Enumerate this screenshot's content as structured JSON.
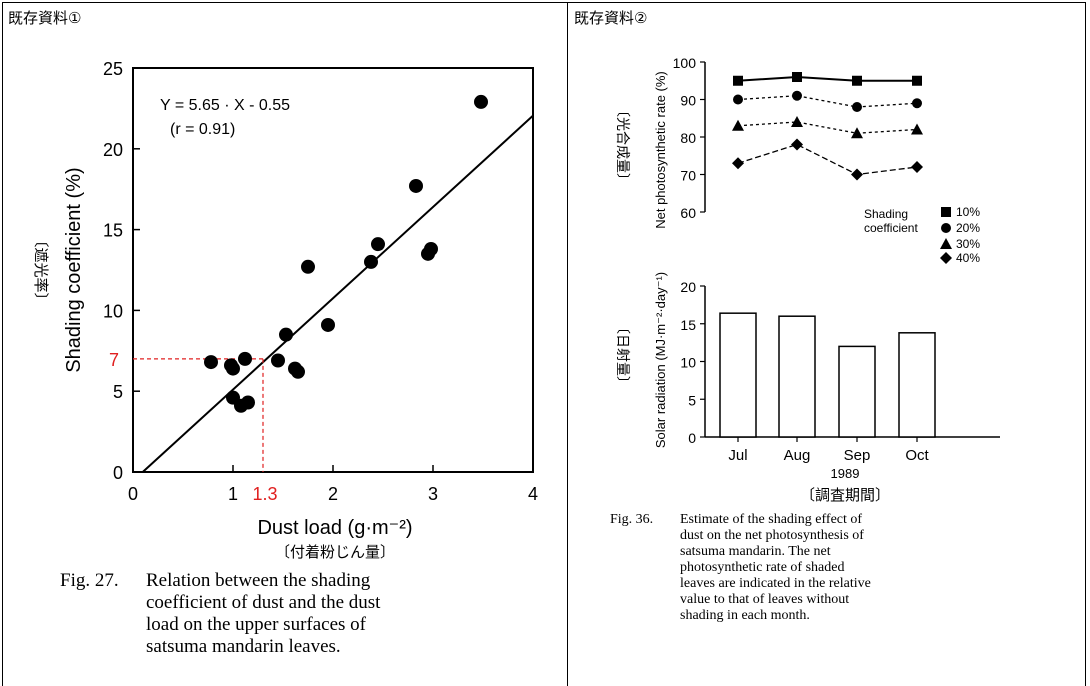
{
  "panels": {
    "left": {
      "title": "既存資料①",
      "caption_label": "Fig. 27.",
      "caption_text_1": "Relation between the shading",
      "caption_text_2": "coefficient of dust and the dust",
      "caption_text_3": "load on the upper surfaces of",
      "caption_text_4": "satsuma mandarin leaves."
    },
    "right": {
      "title": "既存資料②",
      "caption_label": "Fig. 36.",
      "caption_text_1": "Estimate of the shading effect of",
      "caption_text_2": "dust on the net photosynthesis of",
      "caption_text_3": "satsuma mandarin. The net",
      "caption_text_4": "photosynthetic rate of shaded",
      "caption_text_5": "leaves are indicated in the relative",
      "caption_text_6": "value to that of leaves without",
      "caption_text_7": "shading in each month."
    }
  },
  "chart_data": [
    {
      "type": "scatter",
      "xlabel": "Dust load (g·m⁻²)",
      "xlabel_jp": "〔付着粉じん量〕",
      "ylabel": "Shading coefficient (%)",
      "ylabel_jp": "〔遮光率〕",
      "xlim": [
        0,
        4
      ],
      "ylim": [
        0,
        25
      ],
      "xticks": [
        0,
        1,
        2,
        3,
        4
      ],
      "yticks": [
        0,
        5,
        10,
        15,
        20,
        25
      ],
      "equation": "Y = 5.65 · X - 0.55",
      "r_label": "(r = 0.91)",
      "fit": {
        "slope": 5.65,
        "intercept": -0.55
      },
      "points": [
        [
          0.78,
          6.8
        ],
        [
          0.98,
          6.6
        ],
        [
          1.0,
          6.4
        ],
        [
          1.12,
          7.0
        ],
        [
          1.0,
          4.6
        ],
        [
          1.08,
          4.1
        ],
        [
          1.15,
          4.3
        ],
        [
          1.45,
          6.9
        ],
        [
          1.53,
          8.5
        ],
        [
          1.62,
          6.4
        ],
        [
          1.65,
          6.2
        ],
        [
          1.75,
          12.7
        ],
        [
          1.95,
          9.1
        ],
        [
          2.38,
          13.0
        ],
        [
          2.45,
          14.1
        ],
        [
          2.83,
          17.7
        ],
        [
          2.95,
          13.5
        ],
        [
          2.98,
          13.8
        ],
        [
          3.48,
          22.9
        ]
      ],
      "guide": {
        "x": 1.3,
        "y": 7,
        "x_label": "1.3",
        "y_label": "7",
        "color": "#e02020"
      }
    },
    {
      "type": "line",
      "categories": [
        "Jul",
        "Aug",
        "Sep",
        "Oct"
      ],
      "xlabel": "1989",
      "xlabel_jp": "〔調査期間〕",
      "ylabel": "Net photosynthetic rate (%)",
      "ylabel_jp": "〔光合成量〕",
      "ylim": [
        60,
        100
      ],
      "yticks": [
        60,
        70,
        80,
        90,
        100
      ],
      "legend_title_1": "Shading",
      "legend_title_2": "coefficient",
      "series": [
        {
          "name": "10%",
          "marker": "square",
          "values": [
            95,
            96,
            95,
            95
          ]
        },
        {
          "name": "20%",
          "marker": "circle",
          "values": [
            90,
            91,
            88,
            89
          ]
        },
        {
          "name": "30%",
          "marker": "triangle",
          "values": [
            83,
            84,
            81,
            82
          ]
        },
        {
          "name": "40%",
          "marker": "diamond",
          "values": [
            73,
            78,
            70,
            72
          ]
        }
      ]
    },
    {
      "type": "bar",
      "categories": [
        "Jul",
        "Aug",
        "Sep",
        "Oct"
      ],
      "ylabel": "Solar radiation (MJ·m⁻²·day⁻¹)",
      "ylabel_jp": "〔日射量〕",
      "ylim": [
        0,
        20
      ],
      "yticks": [
        0,
        5,
        10,
        15,
        20
      ],
      "values": [
        16.4,
        16.0,
        12.0,
        13.8
      ]
    }
  ]
}
